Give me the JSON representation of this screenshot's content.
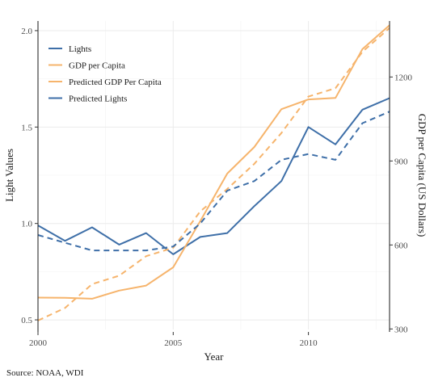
{
  "chart_data": {
    "type": "line",
    "xlabel": "Year",
    "ylabel": "Light Values",
    "y2label": "GDP per Capita (US Dollars)",
    "caption": "Source: NOAA, WDI",
    "xlim": [
      2000,
      2013
    ],
    "ylim": [
      0.45,
      2.05
    ],
    "y2lim": [
      298,
      1400
    ],
    "x_ticks": [
      2000,
      2005,
      2010
    ],
    "y_ticks": [
      0.5,
      1.0,
      1.5,
      2.0
    ],
    "y_tick_labels": [
      "0.5",
      "1.0",
      "1.5",
      "2.0"
    ],
    "y2_ticks": [
      300,
      600,
      900,
      1200
    ],
    "y2_tick_labels": [
      "300",
      "600",
      "900",
      "1200"
    ],
    "grid": true,
    "legend_position": "top-left",
    "colors": {
      "blue": "#3e6fa8",
      "orange": "#f6b46c"
    },
    "x": [
      2000,
      2001,
      2002,
      2003,
      2004,
      2005,
      2006,
      2007,
      2008,
      2009,
      2010,
      2011,
      2012,
      2013
    ],
    "series": [
      {
        "name": "Lights",
        "axis": "left",
        "color": "#3e6fa8",
        "dash": "solid",
        "values": [
          0.99,
          0.91,
          0.98,
          0.89,
          0.95,
          0.84,
          0.93,
          0.95,
          1.09,
          1.22,
          1.5,
          1.41,
          1.59,
          1.65
        ]
      },
      {
        "name": "GDP per Capita",
        "axis": "right",
        "color": "#f6b46c",
        "dash": "solid",
        "values": [
          412,
          411,
          408,
          437,
          455,
          520,
          685,
          855,
          950,
          1085,
          1120,
          1125,
          1300,
          1385
        ]
      },
      {
        "name": "Predicted GDP Per Capita",
        "axis": "right",
        "color": "#f6b46c",
        "dash": "dashed",
        "values": [
          330,
          375,
          460,
          490,
          560,
          590,
          720,
          800,
          890,
          1000,
          1130,
          1160,
          1290,
          1375
        ]
      },
      {
        "name": "Predicted Lights",
        "axis": "left",
        "color": "#3e6fa8",
        "dash": "dashed",
        "values": [
          0.94,
          0.9,
          0.86,
          0.86,
          0.86,
          0.88,
          1.0,
          1.17,
          1.22,
          1.33,
          1.36,
          1.33,
          1.52,
          1.58
        ]
      }
    ]
  }
}
